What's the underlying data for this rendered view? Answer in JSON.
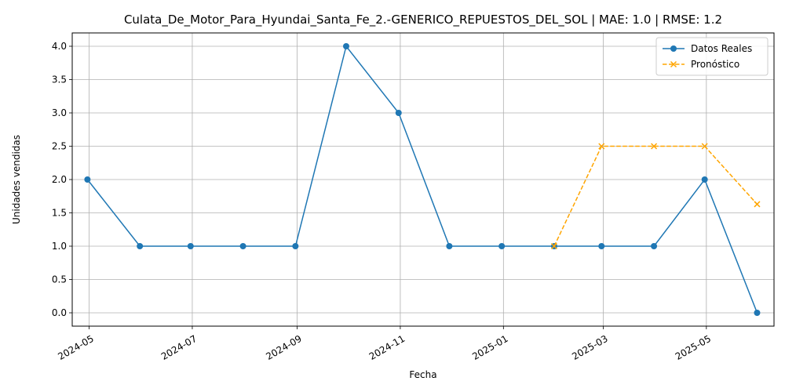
{
  "chart_data": {
    "type": "line",
    "title": "Culata_De_Motor_Para_Hyundai_Santa_Fe_2.-GENERICO_REPUESTOS_DEL_SOL | MAE: 1.0 | RMSE: 1.2",
    "xlabel": "Fecha",
    "ylabel": "Unidades vendidas",
    "xlim": [
      "2024-04-21",
      "2025-06-10"
    ],
    "ylim": [
      -0.2,
      4.2
    ],
    "x_ticks": [
      "2024-05",
      "2024-07",
      "2024-09",
      "2024-11",
      "2025-01",
      "2025-03",
      "2025-05"
    ],
    "y_ticks": [
      "0.0",
      "0.5",
      "1.0",
      "1.5",
      "2.0",
      "2.5",
      "3.0",
      "3.5",
      "4.0"
    ],
    "grid": true,
    "legend_position": "top-right",
    "series": [
      {
        "name": "Datos Reales",
        "color": "#1f77b4",
        "style": "solid",
        "marker": "circle",
        "x": [
          "2024-04-30",
          "2024-05-31",
          "2024-06-30",
          "2024-07-31",
          "2024-08-31",
          "2024-09-30",
          "2024-10-31",
          "2024-11-30",
          "2024-12-31",
          "2025-01-31",
          "2025-02-28",
          "2025-03-31",
          "2025-04-30",
          "2025-05-31"
        ],
        "values": [
          2,
          1,
          1,
          1,
          1,
          4,
          3,
          1,
          1,
          1,
          1,
          1,
          2,
          0
        ]
      },
      {
        "name": "Pronóstico",
        "color": "#ffa500",
        "style": "dashed",
        "marker": "x",
        "x": [
          "2025-01-31",
          "2025-02-28",
          "2025-03-31",
          "2025-04-30",
          "2025-05-31"
        ],
        "values": [
          1.0,
          2.5,
          2.5,
          2.5,
          1.63
        ]
      }
    ]
  }
}
